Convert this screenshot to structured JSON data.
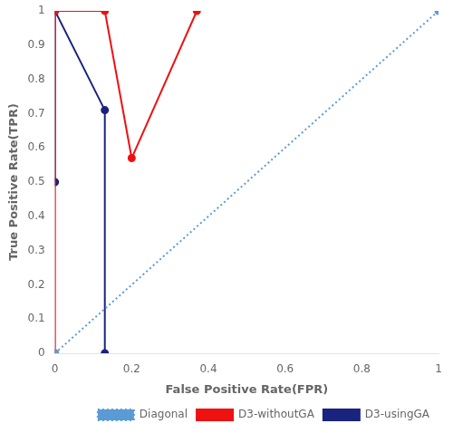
{
  "chart_data": {
    "type": "line",
    "x_label": "False Positive Rate(FPR)",
    "y_label": "True Positive Rate(TPR)",
    "series": [
      {
        "name": "Diagonal",
        "color": "#5B9BD5",
        "marker": "circle",
        "line_style": "dotted",
        "x": [
          0,
          1
        ],
        "values": [
          0,
          1
        ]
      },
      {
        "name": "D3-withoutGA",
        "color": "#EE1111",
        "marker": "circle",
        "line_style": "solid",
        "x": [
          0,
          0,
          0.13,
          0.2,
          0.37
        ],
        "values": [
          0,
          1,
          1,
          0.57,
          1
        ]
      },
      {
        "name": "D3-usingGA",
        "color": "#1A237E",
        "marker": "circle",
        "line_style": "solid",
        "x": [
          0,
          0,
          0.13,
          0.13
        ],
        "values": [
          0.5,
          1,
          0.71,
          0.0
        ]
      }
    ],
    "xlim": [
      0,
      1.0
    ],
    "ylim": [
      0,
      1.0
    ],
    "xticks": [
      0,
      0.2,
      0.4,
      0.6,
      0.8,
      1.0
    ],
    "yticks": [
      0,
      0.1,
      0.2,
      0.3,
      0.4,
      0.5,
      0.6,
      0.7,
      0.8,
      0.9,
      1.0
    ],
    "legend": "lower right",
    "grid": false
  }
}
